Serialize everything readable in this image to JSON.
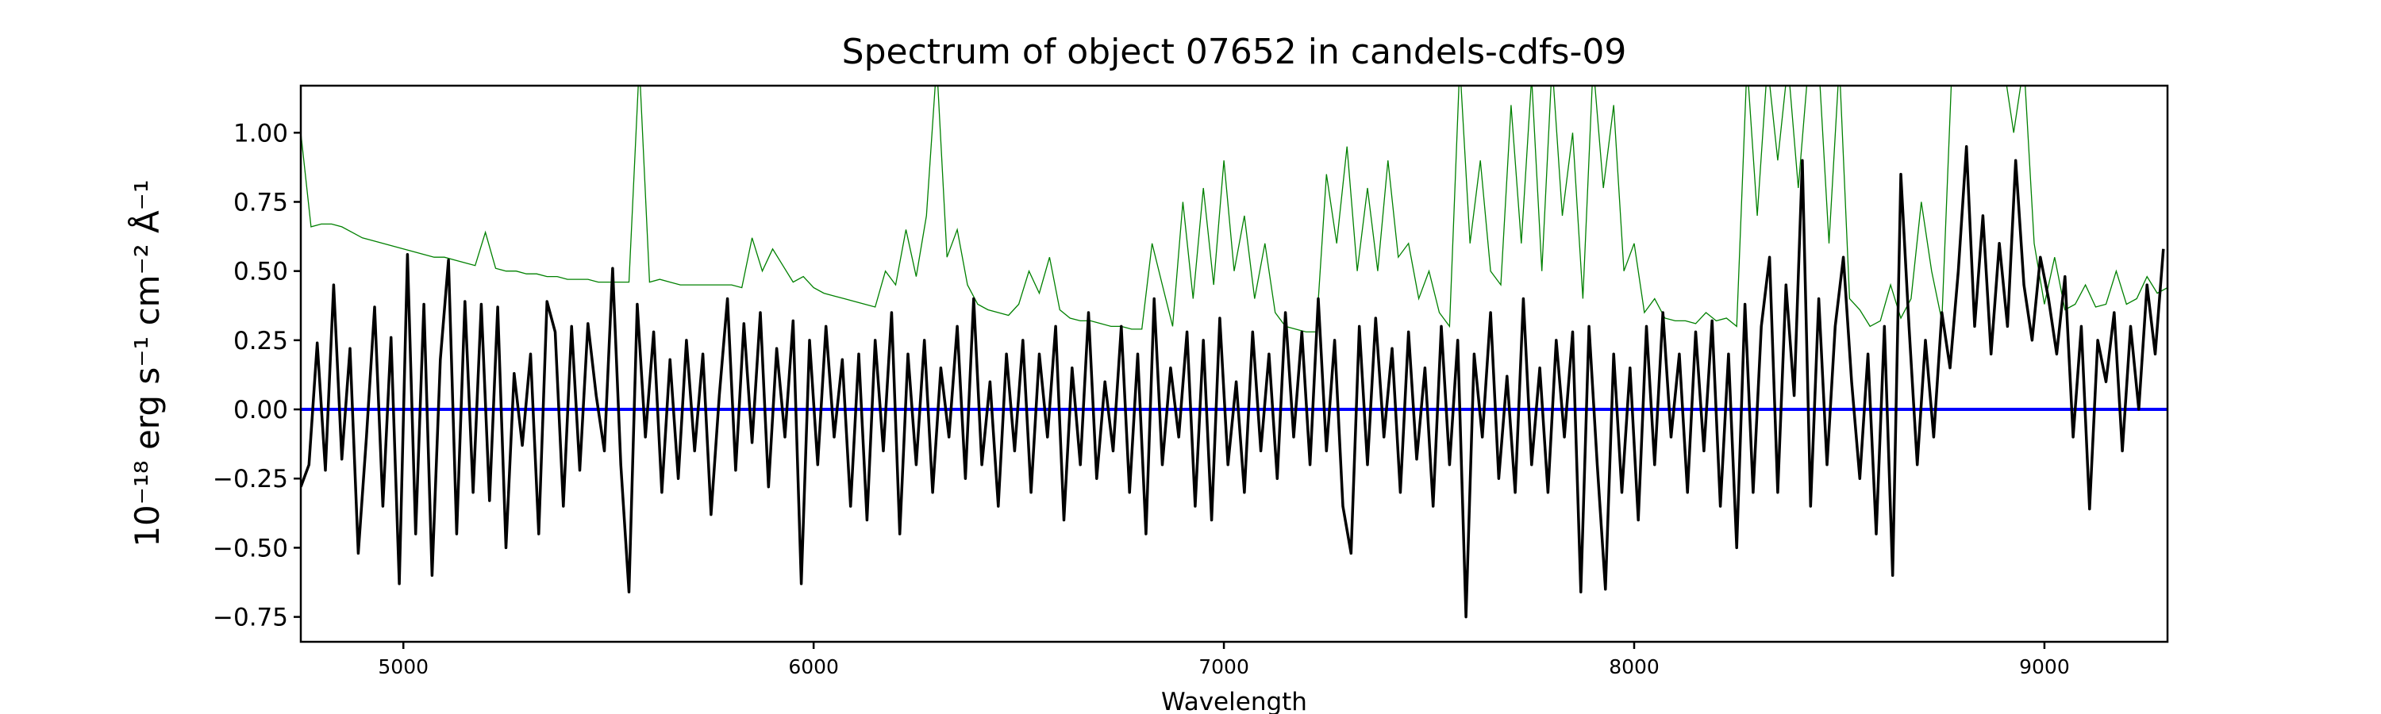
{
  "chart_data": {
    "type": "line",
    "title": "Spectrum of object 07652 in candels-cdfs-09",
    "xlabel": "Wavelength",
    "ylabel": "10⁻¹⁸ erg s⁻¹ cm⁻² Å⁻¹",
    "xlim": [
      4750,
      9300
    ],
    "ylim": [
      -0.84,
      1.17
    ],
    "xticks": [
      5000,
      6000,
      7000,
      8000,
      9000
    ],
    "xtick_labels": [
      "5000",
      "6000",
      "7000",
      "8000",
      "9000"
    ],
    "yticks": [
      -0.75,
      -0.5,
      -0.25,
      0,
      0.25,
      0.5,
      0.75,
      1.0
    ],
    "ytick_labels": [
      "−0.75",
      "−0.50",
      "−0.25",
      "0.00",
      "0.25",
      "0.50",
      "0.75",
      "1.00"
    ],
    "grid": false,
    "colors": {
      "flux": "#000000",
      "error": "#008000",
      "zero": "#0000ff"
    },
    "series": [
      {
        "role": "flux",
        "x_start": 4750,
        "x_step": 20,
        "values": [
          -0.28,
          -0.2,
          0.24,
          -0.22,
          0.45,
          -0.18,
          0.22,
          -0.52,
          -0.1,
          0.37,
          -0.35,
          0.26,
          -0.63,
          0.56,
          -0.45,
          0.38,
          -0.6,
          0.18,
          0.54,
          -0.45,
          0.39,
          -0.3,
          0.38,
          -0.33,
          0.37,
          -0.5,
          0.13,
          -0.13,
          0.2,
          -0.45,
          0.39,
          0.28,
          -0.35,
          0.3,
          -0.22,
          0.31,
          0.05,
          -0.15,
          0.51,
          -0.2,
          -0.66,
          0.38,
          -0.1,
          0.28,
          -0.3,
          0.18,
          -0.25,
          0.25,
          -0.15,
          0.2,
          -0.38,
          0.05,
          0.4,
          -0.22,
          0.31,
          -0.12,
          0.35,
          -0.28,
          0.22,
          -0.1,
          0.32,
          -0.63,
          0.25,
          -0.2,
          0.3,
          -0.1,
          0.18,
          -0.35,
          0.2,
          -0.4,
          0.25,
          -0.15,
          0.35,
          -0.45,
          0.2,
          -0.2,
          0.25,
          -0.3,
          0.15,
          -0.1,
          0.3,
          -0.25,
          0.4,
          -0.2,
          0.1,
          -0.35,
          0.2,
          -0.15,
          0.25,
          -0.3,
          0.2,
          -0.1,
          0.3,
          -0.4,
          0.15,
          -0.2,
          0.35,
          -0.25,
          0.1,
          -0.15,
          0.3,
          -0.3,
          0.2,
          -0.45,
          0.4,
          -0.2,
          0.15,
          -0.1,
          0.28,
          -0.35,
          0.25,
          -0.4,
          0.33,
          -0.2,
          0.1,
          -0.3,
          0.28,
          -0.15,
          0.2,
          -0.25,
          0.35,
          -0.1,
          0.28,
          -0.2,
          0.4,
          -0.15,
          0.25,
          -0.35,
          -0.52,
          0.3,
          -0.2,
          0.33,
          -0.1,
          0.22,
          -0.3,
          0.28,
          -0.18,
          0.15,
          -0.35,
          0.3,
          -0.2,
          0.25,
          -0.75,
          0.2,
          -0.1,
          0.35,
          -0.25,
          0.12,
          -0.3,
          0.4,
          -0.2,
          0.15,
          -0.3,
          0.25,
          -0.1,
          0.28,
          -0.66,
          0.3,
          -0.2,
          -0.65,
          0.2,
          -0.3,
          0.15,
          -0.4,
          0.3,
          -0.2,
          0.35,
          -0.1,
          0.2,
          -0.3,
          0.28,
          -0.15,
          0.32,
          -0.35,
          0.2,
          -0.5,
          0.38,
          -0.3,
          0.3,
          0.55,
          -0.3,
          0.45,
          0.05,
          0.9,
          -0.35,
          0.4,
          -0.2,
          0.3,
          0.55,
          0.1,
          -0.25,
          0.2,
          -0.45,
          0.3,
          -0.6,
          0.85,
          0.3,
          -0.2,
          0.25,
          -0.1,
          0.35,
          0.15,
          0.5,
          0.95,
          0.3,
          0.7,
          0.2,
          0.6,
          0.3,
          0.9,
          0.45,
          0.25,
          0.55,
          0.4,
          0.2,
          0.48,
          -0.1,
          0.3,
          -0.36,
          0.25,
          0.1,
          0.35,
          -0.15,
          0.3,
          0.0,
          0.45,
          0.2,
          0.58
        ]
      },
      {
        "role": "error",
        "x_start": 4750,
        "x_step": 25,
        "values": [
          1.0,
          0.66,
          0.67,
          0.67,
          0.66,
          0.64,
          0.62,
          0.61,
          0.6,
          0.59,
          0.58,
          0.57,
          0.56,
          0.55,
          0.55,
          0.54,
          0.53,
          0.52,
          0.64,
          0.51,
          0.5,
          0.5,
          0.49,
          0.49,
          0.48,
          0.48,
          0.47,
          0.47,
          0.47,
          0.46,
          0.46,
          0.46,
          0.46,
          1.25,
          0.46,
          0.47,
          0.46,
          0.45,
          0.45,
          0.45,
          0.45,
          0.45,
          0.45,
          0.44,
          0.62,
          0.5,
          0.58,
          0.52,
          0.46,
          0.48,
          0.44,
          0.42,
          0.41,
          0.4,
          0.39,
          0.38,
          0.37,
          0.5,
          0.45,
          0.65,
          0.48,
          0.7,
          1.25,
          0.55,
          0.65,
          0.45,
          0.38,
          0.36,
          0.35,
          0.34,
          0.38,
          0.5,
          0.42,
          0.55,
          0.36,
          0.33,
          0.32,
          0.32,
          0.31,
          0.3,
          0.3,
          0.29,
          0.29,
          0.6,
          0.45,
          0.3,
          0.75,
          0.4,
          0.8,
          0.45,
          0.9,
          0.5,
          0.7,
          0.4,
          0.6,
          0.35,
          0.3,
          0.29,
          0.28,
          0.28,
          0.85,
          0.6,
          0.95,
          0.5,
          0.8,
          0.5,
          0.9,
          0.55,
          0.6,
          0.4,
          0.5,
          0.35,
          0.3,
          1.25,
          0.6,
          0.9,
          0.5,
          0.45,
          1.1,
          0.6,
          1.2,
          0.5,
          1.25,
          0.7,
          1.0,
          0.4,
          1.25,
          0.8,
          1.1,
          0.5,
          0.6,
          0.35,
          0.4,
          0.33,
          0.32,
          0.32,
          0.31,
          0.35,
          0.32,
          0.33,
          0.3,
          1.25,
          0.7,
          1.25,
          0.9,
          1.25,
          0.8,
          1.25,
          1.25,
          0.6,
          1.25,
          0.4,
          0.36,
          0.3,
          0.32,
          0.45,
          0.33,
          0.4,
          0.75,
          0.5,
          0.32,
          1.25,
          1.25,
          1.25,
          1.25,
          1.25,
          1.25,
          1.0,
          1.25,
          0.6,
          0.38,
          0.55,
          0.36,
          0.38,
          0.45,
          0.37,
          0.38,
          0.5,
          0.38,
          0.4,
          0.48,
          0.42,
          0.44
        ]
      },
      {
        "role": "zero",
        "values": [
          0,
          0
        ]
      }
    ]
  }
}
